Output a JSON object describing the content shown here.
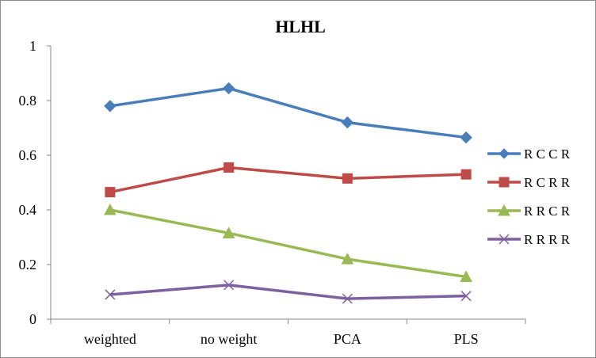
{
  "chart_data": {
    "type": "line",
    "title": "HLHL",
    "xlabel": "",
    "ylabel": "",
    "categories": [
      "weighted",
      "no weight",
      "PCA",
      "PLS"
    ],
    "ylim": [
      0,
      1
    ],
    "yticks": [
      "0",
      "0.2",
      "0.4",
      "0.6",
      "0.8",
      "1"
    ],
    "grid": false,
    "legend_position": "right",
    "series": [
      {
        "name": "R C C R",
        "values": [
          0.78,
          0.845,
          0.72,
          0.665
        ],
        "color": "#4a7ebb",
        "marker": "diamond"
      },
      {
        "name": "R C R R",
        "values": [
          0.465,
          0.555,
          0.515,
          0.53
        ],
        "color": "#be4b48",
        "marker": "square"
      },
      {
        "name": "R R C R",
        "values": [
          0.4,
          0.315,
          0.22,
          0.155
        ],
        "color": "#98b954",
        "marker": "triangle"
      },
      {
        "name": "R R R R",
        "values": [
          0.09,
          0.125,
          0.075,
          0.085
        ],
        "color": "#7d60a0",
        "marker": "x"
      }
    ]
  }
}
